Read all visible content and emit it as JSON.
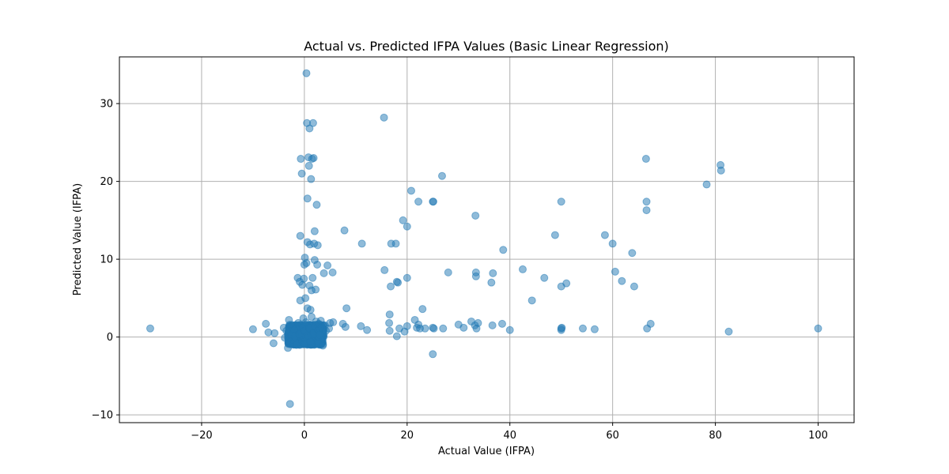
{
  "chart_data": {
    "type": "scatter",
    "title": "Actual vs. Predicted IFPA Values (Basic Linear Regression)",
    "xlabel": "Actual Value (IFPA)",
    "ylabel": "Predicted Value (IFPA)",
    "xlim": [
      -36,
      107
    ],
    "ylim": [
      -11,
      36
    ],
    "xticks": [
      -20,
      0,
      20,
      40,
      60,
      80,
      100
    ],
    "yticks": [
      -10,
      0,
      10,
      20,
      30
    ],
    "xtick_labels": [
      "−20",
      "0",
      "20",
      "40",
      "60",
      "80",
      "100"
    ],
    "ytick_labels": [
      "−10",
      "0",
      "10",
      "20",
      "30"
    ],
    "grid": true,
    "marker_color": "#1f77b4",
    "marker_alpha": 0.5,
    "series": [
      {
        "points": [
          [
            -30,
            1.1
          ],
          [
            -10,
            1.0
          ],
          [
            -7.5,
            1.7
          ],
          [
            -7,
            0.6
          ],
          [
            -6,
            -0.8
          ],
          [
            -5.8,
            0.5
          ],
          [
            -4,
            1.2
          ],
          [
            -3.8,
            -0.1
          ],
          [
            -3.5,
            0.8
          ],
          [
            -3.2,
            -1.4
          ],
          [
            -3,
            2.2
          ],
          [
            -2.8,
            -8.6
          ],
          [
            -2.5,
            0.3
          ],
          [
            -2.2,
            1.5
          ],
          [
            -2,
            0.9
          ],
          [
            -1.8,
            0.1
          ],
          [
            -1.5,
            -1.0
          ],
          [
            -1.3,
            7.6
          ],
          [
            -1.2,
            1.8
          ],
          [
            -1,
            0.4
          ],
          [
            -0.9,
            7.1
          ],
          [
            -0.8,
            13.0
          ],
          [
            -0.8,
            4.7
          ],
          [
            -0.7,
            22.9
          ],
          [
            -0.5,
            21.0
          ],
          [
            -0.4,
            6.7
          ],
          [
            -0.3,
            1.3
          ],
          [
            -0.2,
            2.4
          ],
          [
            -0.1,
            7.5
          ],
          [
            0,
            0.8
          ],
          [
            0,
            9.3
          ],
          [
            0.1,
            10.2
          ],
          [
            0.2,
            5.0
          ],
          [
            0.3,
            1.9
          ],
          [
            0.4,
            9.5
          ],
          [
            0.4,
            33.9
          ],
          [
            0.5,
            27.5
          ],
          [
            0.6,
            17.8
          ],
          [
            0.6,
            12.2
          ],
          [
            0.6,
            3.7
          ],
          [
            0.7,
            0.2
          ],
          [
            0.8,
            23.1
          ],
          [
            0.9,
            22.0
          ],
          [
            1,
            26.8
          ],
          [
            1,
            6.6
          ],
          [
            1,
            1.1
          ],
          [
            1.1,
            11.9
          ],
          [
            1.2,
            3.5
          ],
          [
            1.3,
            20.3
          ],
          [
            1.4,
            2.6
          ],
          [
            1.4,
            6.0
          ],
          [
            1.5,
            22.9
          ],
          [
            1.6,
            7.6
          ],
          [
            1.7,
            27.5
          ],
          [
            1.8,
            23.0
          ],
          [
            1.8,
            0.5
          ],
          [
            1.9,
            12.0
          ],
          [
            2,
            9.9
          ],
          [
            2,
            13.6
          ],
          [
            2.1,
            1.4
          ],
          [
            2.2,
            6.1
          ],
          [
            2.3,
            2.0
          ],
          [
            2.4,
            17.0
          ],
          [
            2.5,
            9.3
          ],
          [
            2.6,
            11.8
          ],
          [
            2.7,
            0.9
          ],
          [
            2.8,
            1.7
          ],
          [
            3,
            0.3
          ],
          [
            3.2,
            2.1
          ],
          [
            3.4,
            1.2
          ],
          [
            3.6,
            -1.1
          ],
          [
            3.8,
            8.2
          ],
          [
            4,
            1.5
          ],
          [
            4.2,
            0.8
          ],
          [
            4.5,
            9.2
          ],
          [
            4.8,
            1.1
          ],
          [
            5,
            1.8
          ],
          [
            5.5,
            8.3
          ],
          [
            5.6,
            1.9
          ],
          [
            7.5,
            1.7
          ],
          [
            7.8,
            13.7
          ],
          [
            8,
            1.3
          ],
          [
            8.2,
            3.7
          ],
          [
            11,
            1.4
          ],
          [
            11.2,
            12.0
          ],
          [
            12.2,
            0.9
          ],
          [
            15.5,
            28.2
          ],
          [
            15.6,
            8.6
          ],
          [
            16.5,
            1.8
          ],
          [
            16.6,
            0.8
          ],
          [
            16.6,
            2.9
          ],
          [
            16.8,
            6.5
          ],
          [
            16.9,
            12.0
          ],
          [
            17.8,
            12.0
          ],
          [
            18,
            0.1
          ],
          [
            18,
            7.1
          ],
          [
            18.2,
            7.0
          ],
          [
            18.5,
            1.1
          ],
          [
            19.2,
            15.0
          ],
          [
            19.5,
            0.7
          ],
          [
            20,
            1.4
          ],
          [
            20,
            14.2
          ],
          [
            20,
            7.6
          ],
          [
            20.8,
            18.8
          ],
          [
            21.5,
            2.2
          ],
          [
            21.9,
            1.2
          ],
          [
            22.2,
            1.6
          ],
          [
            22.2,
            17.4
          ],
          [
            22.5,
            1.1
          ],
          [
            23,
            3.6
          ],
          [
            23.5,
            1.1
          ],
          [
            25,
            1.2
          ],
          [
            25,
            17.4
          ],
          [
            25,
            -2.2
          ],
          [
            25.1,
            17.4
          ],
          [
            25.2,
            1.1
          ],
          [
            26.8,
            20.7
          ],
          [
            27,
            1.1
          ],
          [
            28,
            8.3
          ],
          [
            30,
            1.6
          ],
          [
            31,
            1.2
          ],
          [
            32.5,
            2.0
          ],
          [
            33.2,
            1.5
          ],
          [
            33.3,
            15.6
          ],
          [
            33.4,
            8.3
          ],
          [
            33.5,
            1.1
          ],
          [
            33.4,
            7.8
          ],
          [
            33.8,
            1.8
          ],
          [
            36.4,
            7.0
          ],
          [
            36.6,
            1.5
          ],
          [
            36.7,
            8.2
          ],
          [
            38.5,
            1.7
          ],
          [
            38.7,
            11.2
          ],
          [
            40,
            0.9
          ],
          [
            42.5,
            8.7
          ],
          [
            44.3,
            4.7
          ],
          [
            46.7,
            7.6
          ],
          [
            48.8,
            13.1
          ],
          [
            50,
            17.4
          ],
          [
            50,
            0.9
          ],
          [
            50,
            6.5
          ],
          [
            50,
            1.1
          ],
          [
            50.1,
            1.2
          ],
          [
            51,
            6.9
          ],
          [
            54.2,
            1.1
          ],
          [
            56.5,
            1.0
          ],
          [
            58.5,
            13.1
          ],
          [
            60,
            12.0
          ],
          [
            60.5,
            8.4
          ],
          [
            61.8,
            7.2
          ],
          [
            63.8,
            10.8
          ],
          [
            64.2,
            6.5
          ],
          [
            66.5,
            22.9
          ],
          [
            66.6,
            17.4
          ],
          [
            66.6,
            16.3
          ],
          [
            66.7,
            1.1
          ],
          [
            67.4,
            1.7
          ],
          [
            78.3,
            19.6
          ],
          [
            81,
            22.1
          ],
          [
            81.1,
            21.4
          ],
          [
            82.6,
            0.7
          ],
          [
            100,
            1.1
          ]
        ]
      }
    ]
  }
}
